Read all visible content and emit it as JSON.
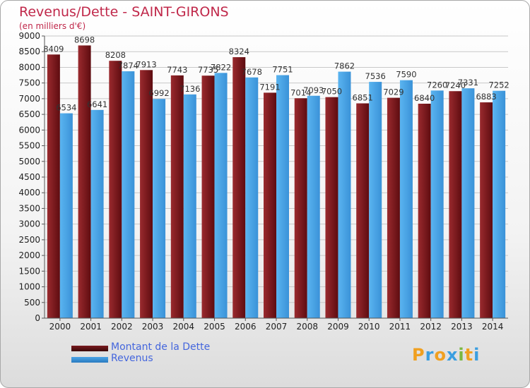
{
  "chart_data": {
    "type": "bar",
    "title": "Revenus/Dette - SAINT-GIRONS",
    "subtitle": "(en milliers d'€)",
    "categories": [
      "2000",
      "2001",
      "2002",
      "2003",
      "2004",
      "2005",
      "2006",
      "2007",
      "2008",
      "2009",
      "2010",
      "2011",
      "2012",
      "2013",
      "2014"
    ],
    "series": [
      {
        "name": "Montant de la Dette",
        "color": "#7a1a1e",
        "values": [
          8409,
          8698,
          8208,
          7913,
          7743,
          7735,
          8324,
          7191,
          7014,
          7050,
          6851,
          7029,
          6840,
          7240,
          6883
        ],
        "labels": [
          "8409",
          "8698",
          "8208",
          "7913",
          "7743",
          "7735",
          "8324",
          "7191",
          "7014",
          "7050",
          "6851",
          "7029",
          "6840",
          "7240",
          "6883"
        ]
      },
      {
        "name": "Revenus",
        "color": "#4aa3e6",
        "values": [
          6534,
          6641,
          7874,
          6992,
          7136,
          7822,
          7678,
          7751,
          7093,
          7862,
          7536,
          7590,
          7260,
          7331,
          7252
        ],
        "labels": [
          "6534",
          "6641",
          "7874",
          "6992",
          "7136",
          "7822",
          "7678",
          "7751",
          "7093",
          "7862",
          "7536",
          "7590",
          "7260",
          "7331",
          "7252"
        ]
      }
    ],
    "ylim": [
      0,
      9000
    ],
    "ytick_step": 500,
    "grid": true,
    "legend": "bottom-left"
  },
  "legend": {
    "items": [
      {
        "label": "Montant de la Dette",
        "color": "#7a1a1e"
      },
      {
        "label": "Revenus",
        "color": "#4aa3e6"
      }
    ]
  },
  "logo": {
    "letters": [
      "P",
      "r",
      "o",
      "x",
      "i",
      "t",
      "i"
    ],
    "colors": [
      "#f0a020",
      "#3a9ee0",
      "#f0a020",
      "#3a9ee0",
      "#7ab840",
      "#f0a020",
      "#3a9ee0"
    ]
  }
}
